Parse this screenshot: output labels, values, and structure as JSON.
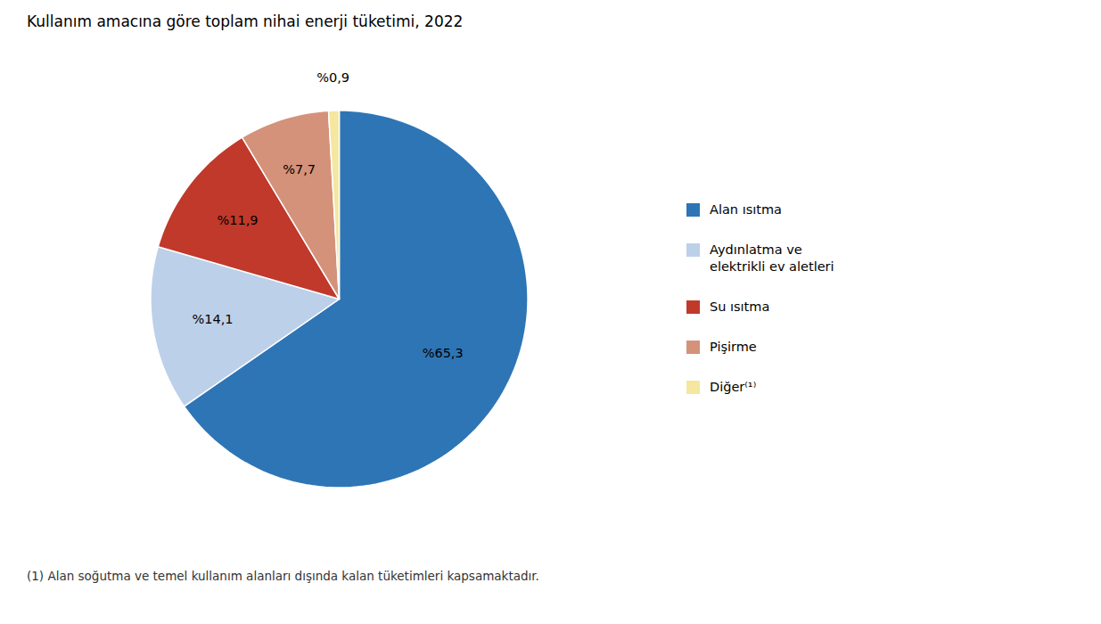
{
  "chart_data": {
    "type": "pie",
    "title": "Kullanım amacına göre toplam nihai enerji tüketimi, 2022",
    "annotations": [
      "(1) Alan soğutma ve temel kullanım alanları dışında kalan tüketimleri kapsamaktadır."
    ],
    "categories": [
      "Alan ısıtma",
      "Aydınlatma ve\nelektrikli ev aletleri",
      "Su ısıtma",
      "Pişirme",
      "Diğer⁽¹⁾"
    ],
    "values": [
      65.3,
      14.1,
      11.9,
      7.7,
      0.9
    ],
    "value_labels": [
      "%65,3",
      "%14,1",
      "%11,9",
      "%7,7",
      "%0,9"
    ],
    "colors": [
      "#2E75B6",
      "#BDD0E9",
      "#C0392B",
      "#D4927A",
      "#F5E6A0"
    ],
    "data_labels": true,
    "legend": "right"
  }
}
